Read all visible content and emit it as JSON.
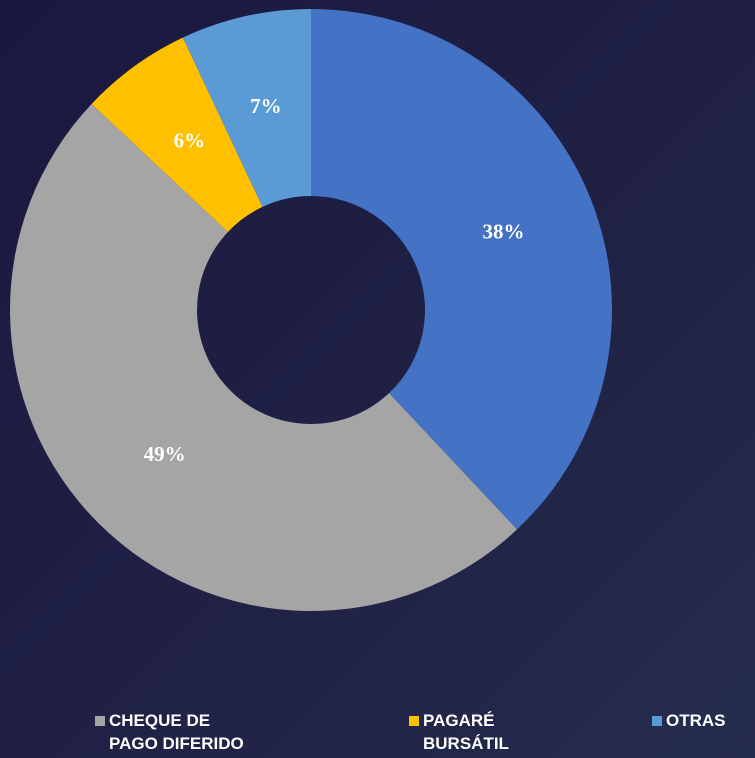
{
  "chart_data": {
    "type": "donut",
    "categories": [
      null,
      "CHEQUE DE PAGO DIFERIDO",
      "PAGARÉ BURSÁTIL",
      "OTRAS"
    ],
    "values": [
      38,
      49,
      6,
      7
    ],
    "value_labels": [
      "38%",
      "49%",
      "6%",
      "7%"
    ],
    "colors": [
      "#4472c4",
      "#a5a5a5",
      "#ffc000",
      "#5b9bd5"
    ],
    "legend": "bottom"
  }
}
